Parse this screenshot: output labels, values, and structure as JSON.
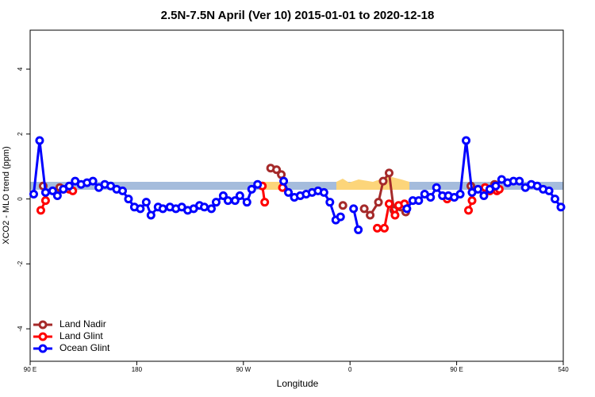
{
  "chart_data": {
    "type": "line",
    "title": "2.5N-7.5N April (Ver 10)   2015-01-01 to 2020-12-18",
    "x_label": "Longitude",
    "y_label": "XCO2 - MLO trend (ppm)",
    "xlim": [
      90,
      540
    ],
    "xticks": [
      {
        "value": 90,
        "label": "90 E"
      },
      180,
      {
        "value": 270,
        "label": "90 W"
      },
      {
        "value": 360,
        "label": "0"
      },
      {
        "value": 450,
        "label": "90 E"
      },
      540
    ],
    "ylim": [
      -5,
      5.2
    ],
    "yticks": [
      -4,
      -2,
      0,
      2,
      4
    ],
    "legend": "bottom-left",
    "series": [
      {
        "name": "Land Nadir",
        "color": "#a52a2a",
        "x": [
          101,
          null,
          115,
          null,
          293,
          298,
          302,
          null,
          354,
          null,
          372,
          377,
          384,
          388,
          393,
          397,
          403,
          407,
          null,
          462,
          null,
          474,
          482
        ],
        "values": [
          0.4,
          null,
          0.35,
          null,
          0.95,
          0.9,
          0.75,
          null,
          -0.2,
          null,
          -0.3,
          -0.5,
          -0.1,
          0.55,
          0.8,
          -0.35,
          -0.25,
          -0.4,
          null,
          0.4,
          null,
          0.35,
          0.45
        ]
      },
      {
        "name": "Land Glint",
        "color": "#ff0000",
        "x": [
          99,
          103,
          null,
          118,
          123,
          126,
          null,
          286,
          288,
          null,
          303,
          null,
          383,
          389,
          393,
          398,
          401,
          406,
          null,
          442,
          null,
          460,
          463,
          null,
          474,
          478,
          484,
          486
        ],
        "values": [
          -0.35,
          -0.05,
          null,
          0.3,
          0.3,
          0.25,
          null,
          0.4,
          -0.1,
          null,
          0.35,
          null,
          -0.9,
          -0.9,
          -0.15,
          -0.5,
          -0.2,
          -0.15,
          null,
          0.0,
          null,
          -0.35,
          -0.05,
          null,
          0.35,
          0.25,
          0.25,
          0.3
        ]
      },
      {
        "name": "Ocean Glint",
        "color": "#0000ff",
        "x": [
          93,
          98,
          103,
          109,
          113,
          118,
          123,
          128,
          133,
          138,
          143,
          148,
          153,
          158,
          163,
          168,
          173,
          178,
          183,
          188,
          192,
          198,
          202,
          208,
          213,
          218,
          223,
          228,
          233,
          237,
          243,
          247,
          253,
          257,
          263,
          267,
          273,
          277,
          282,
          null,
          304,
          308,
          313,
          318,
          323,
          328,
          333,
          338,
          343,
          348,
          352,
          null,
          363,
          367,
          null,
          408,
          413,
          418,
          423,
          428,
          433,
          438,
          443,
          448,
          453,
          458,
          463,
          468,
          473,
          478,
          483,
          488,
          493,
          498,
          503,
          508,
          513,
          518,
          523,
          528,
          533,
          538
        ],
        "values": [
          0.15,
          1.8,
          0.2,
          0.25,
          0.1,
          0.3,
          0.4,
          0.55,
          0.45,
          0.5,
          0.55,
          0.35,
          0.45,
          0.4,
          0.3,
          0.25,
          0.0,
          -0.25,
          -0.3,
          -0.1,
          -0.5,
          -0.25,
          -0.3,
          -0.25,
          -0.3,
          -0.25,
          -0.35,
          -0.3,
          -0.2,
          -0.25,
          -0.3,
          -0.1,
          0.1,
          -0.05,
          -0.05,
          0.1,
          -0.1,
          0.3,
          0.45,
          null,
          0.55,
          0.2,
          0.05,
          0.1,
          0.15,
          0.2,
          0.25,
          0.2,
          -0.1,
          -0.65,
          -0.55,
          null,
          -0.3,
          -0.95,
          null,
          -0.3,
          -0.05,
          -0.05,
          0.15,
          0.05,
          0.35,
          0.1,
          0.1,
          0.05,
          0.15,
          1.8,
          0.2,
          0.3,
          0.1,
          0.3,
          0.4,
          0.6,
          0.5,
          0.55,
          0.55,
          0.35,
          0.45,
          0.4,
          0.3,
          0.25,
          0.0,
          -0.25
        ]
      }
    ]
  }
}
